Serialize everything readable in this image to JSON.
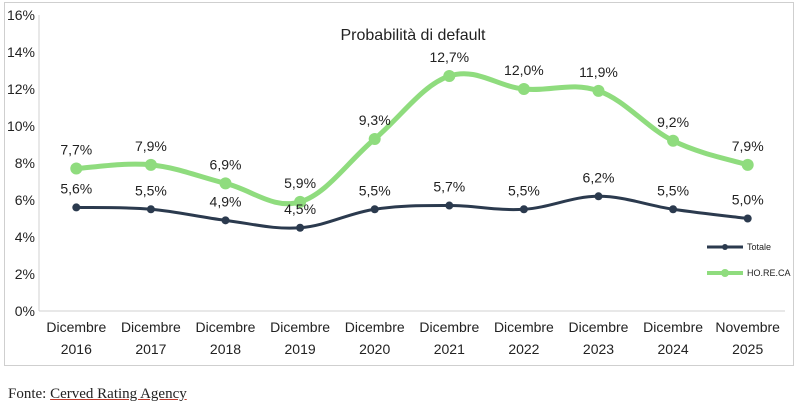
{
  "chart_data": {
    "type": "line",
    "title": "Probabilità di default",
    "categories": [
      [
        "Dicembre",
        "2016"
      ],
      [
        "Dicembre",
        "2017"
      ],
      [
        "Dicembre",
        "2018"
      ],
      [
        "Dicembre",
        "2019"
      ],
      [
        "Dicembre",
        "2020"
      ],
      [
        "Dicembre",
        "2021"
      ],
      [
        "Dicembre",
        "2022"
      ],
      [
        "Dicembre",
        "2023"
      ],
      [
        "Dicembre",
        "2024"
      ],
      [
        "Novembre",
        "2025"
      ]
    ],
    "series": [
      {
        "name": "Totale",
        "color": "#2b3a4e",
        "values": [
          5.6,
          5.5,
          4.9,
          4.5,
          5.5,
          5.7,
          5.5,
          6.2,
          5.5,
          5.0
        ],
        "labels": [
          "5,6%",
          "5,5%",
          "4,9%",
          "4,5%",
          "5,5%",
          "5,7%",
          "5,5%",
          "6,2%",
          "5,5%",
          "5,0%"
        ]
      },
      {
        "name": "HO.RE.CA",
        "color": "#8fdc7e",
        "values": [
          7.7,
          7.9,
          6.9,
          5.9,
          9.3,
          12.7,
          12.0,
          11.9,
          9.2,
          7.9
        ],
        "labels": [
          "7,7%",
          "7,9%",
          "6,9%",
          "5,9%",
          "9,3%",
          "12,7%",
          "12,0%",
          "11,9%",
          "9,2%",
          "7,9%"
        ]
      }
    ],
    "ylim": [
      0,
      16
    ],
    "yticks": [
      0,
      2,
      4,
      6,
      8,
      10,
      12,
      14,
      16
    ],
    "ytick_labels": [
      "0%",
      "2%",
      "4%",
      "6%",
      "8%",
      "10%",
      "12%",
      "14%",
      "16%"
    ],
    "grid": false,
    "legend_position": "right"
  },
  "source": {
    "prefix": "Fonte: ",
    "name": "Cerved Rating Agency"
  }
}
